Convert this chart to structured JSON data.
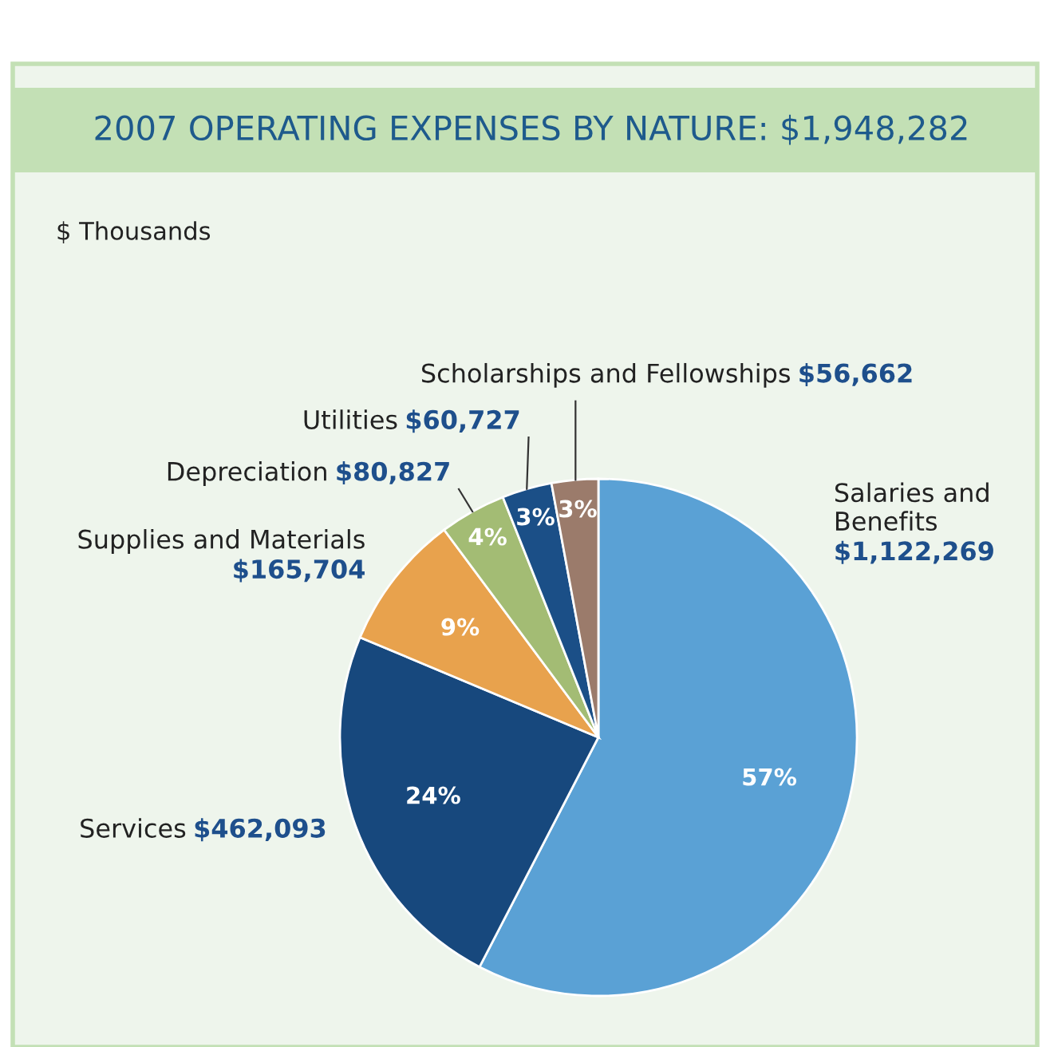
{
  "chart_data": {
    "type": "pie",
    "title": "2007 OPERATING EXPENSES BY NATURE: $1,948,282",
    "subtitle": "$ Thousands",
    "categories": [
      "Salaries and\nBenefits",
      "Services",
      "Supplies and Materials",
      "Depreciation",
      "Utilities",
      "Scholarships and Fellowships"
    ],
    "values": [
      1122269,
      462093,
      165704,
      80827,
      60727,
      56662
    ],
    "value_labels": [
      "$1,122,269",
      "$462,093",
      "$165,704",
      "$80,827",
      "$60,727",
      "$56,662"
    ],
    "colors": [
      "#5aa1d5",
      "#17487d",
      "#e8a24d",
      "#a3bc74",
      "#1b4f87",
      "#9b7b6b"
    ],
    "annotations": [
      "57%",
      "24%",
      "9%",
      "4%",
      "3%",
      "3%"
    ],
    "legend": false
  }
}
